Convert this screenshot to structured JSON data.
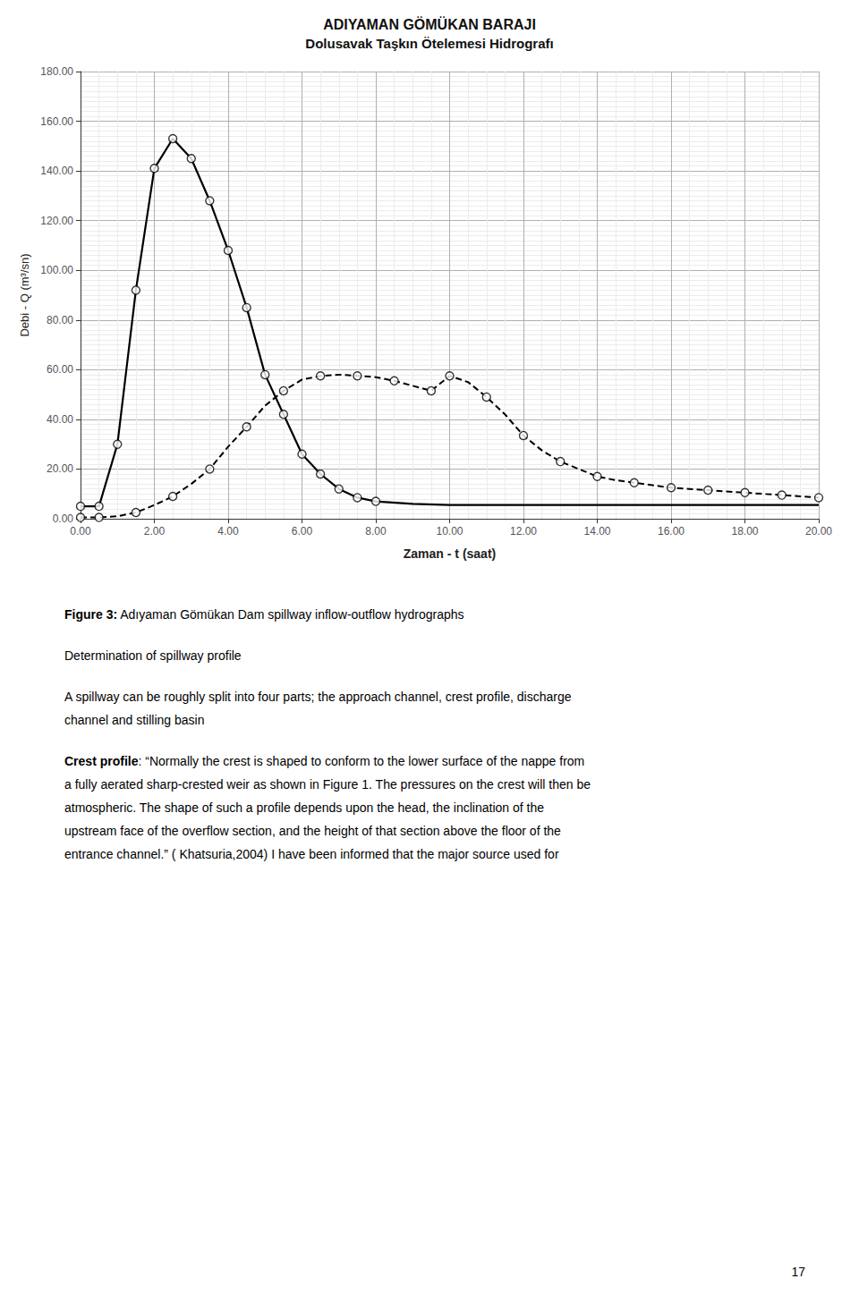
{
  "chart_data": {
    "type": "line",
    "title": "ADIYAMAN GÖMÜKAN BARAJI",
    "subtitle": "Dolusavak Taşkın Ötelemesi Hidrografı",
    "xlabel": "Zaman - t (saat)",
    "ylabel": "Debi - Q (m³/sn)",
    "xlim": [
      0,
      20
    ],
    "ylim": [
      0,
      180
    ],
    "xticks": [
      {
        "value": 0,
        "label": "0.00"
      },
      {
        "value": 2,
        "label": "2.00"
      },
      {
        "value": 4,
        "label": "4.00"
      },
      {
        "value": 6,
        "label": "6.00"
      },
      {
        "value": 8,
        "label": "8.00"
      },
      {
        "value": 10,
        "label": "10.00"
      },
      {
        "value": 12,
        "label": "12.00"
      },
      {
        "value": 14,
        "label": "14.00"
      },
      {
        "value": 16,
        "label": "16.00"
      },
      {
        "value": 18,
        "label": "18.00"
      },
      {
        "value": 20,
        "label": "20.00"
      }
    ],
    "yticks": [
      {
        "value": 0,
        "label": "0.00"
      },
      {
        "value": 20,
        "label": "20.00"
      },
      {
        "value": 40,
        "label": "40.00"
      },
      {
        "value": 60,
        "label": "60.00"
      },
      {
        "value": 80,
        "label": "80.00"
      },
      {
        "value": 100,
        "label": "100.00"
      },
      {
        "value": 120,
        "label": "120.00"
      },
      {
        "value": 140,
        "label": "140.00"
      },
      {
        "value": 160,
        "label": "160.00"
      },
      {
        "value": 180,
        "label": "180.00"
      }
    ],
    "grid": true,
    "series": [
      {
        "type": "line",
        "color": "#000000",
        "line_style": "solid",
        "x": [
          0.0,
          0.5,
          1.0,
          1.5,
          2.0,
          2.5,
          3.0,
          3.5,
          4.0,
          4.5,
          5.0,
          5.5,
          6.0,
          6.5,
          7.0,
          7.5,
          8.0,
          9.0,
          10.0,
          12.0,
          14.0,
          16.0,
          18.0,
          20.0
        ],
        "values": [
          5.0,
          5.0,
          30.0,
          92.0,
          141.0,
          153.0,
          145.0,
          128.0,
          108.0,
          85.0,
          58.0,
          42.0,
          26.0,
          18.0,
          12.0,
          8.5,
          7.0,
          6.0,
          5.5,
          5.5,
          5.5,
          5.5,
          5.5,
          5.5
        ]
      },
      {
        "type": "scatter",
        "color": "#000000",
        "marker": "circle",
        "x": [
          0.0,
          0.5,
          1.0,
          1.5,
          2.0,
          2.5,
          3.0,
          3.5,
          4.0,
          4.5,
          5.0,
          5.5,
          6.0,
          6.5,
          7.0,
          7.5,
          8.0
        ],
        "values": [
          5.0,
          5.0,
          30.0,
          92.0,
          141.0,
          153.0,
          145.0,
          128.0,
          108.0,
          85.0,
          58.0,
          42.0,
          26.0,
          18.0,
          12.0,
          8.5,
          7.0
        ]
      },
      {
        "type": "line",
        "color": "#000000",
        "line_style": "dashed",
        "x": [
          0.0,
          0.5,
          1.0,
          1.5,
          2.0,
          2.5,
          3.0,
          3.5,
          4.0,
          4.5,
          5.0,
          5.5,
          6.0,
          6.5,
          7.0,
          7.5,
          8.0,
          8.5,
          9.0,
          9.5,
          10.0,
          10.5,
          11.0,
          11.5,
          12.0,
          12.5,
          13.0,
          13.5,
          14.0,
          14.5,
          15.0,
          15.5,
          16.0,
          16.5,
          17.0,
          17.5,
          18.0,
          18.5,
          19.0,
          19.5,
          20.0
        ],
        "values": [
          0.5,
          0.5,
          1.0,
          2.5,
          5.5,
          9.0,
          14.0,
          20.0,
          29.0,
          37.0,
          45.5,
          51.5,
          56.0,
          57.5,
          58.0,
          57.5,
          57.0,
          55.5,
          53.5,
          51.5,
          57.5,
          55.0,
          49.0,
          42.0,
          33.5,
          27.5,
          23.0,
          20.0,
          17.0,
          15.5,
          14.5,
          13.5,
          12.5,
          12.0,
          11.5,
          11.0,
          10.5,
          10.0,
          9.5,
          9.0,
          8.5
        ]
      },
      {
        "type": "scatter",
        "color": "#000000",
        "marker": "circle",
        "x": [
          0.0,
          0.5,
          1.5,
          2.5,
          3.5,
          4.5,
          5.5,
          6.5,
          7.5,
          8.5,
          9.5,
          10.0,
          11.0,
          12.0,
          13.0,
          14.0,
          15.0,
          16.0,
          17.0,
          18.0,
          19.0,
          20.0
        ],
        "values": [
          0.5,
          0.5,
          2.5,
          9.0,
          20.0,
          37.0,
          51.5,
          57.5,
          57.5,
          55.5,
          51.5,
          57.5,
          49.0,
          33.5,
          23.0,
          17.0,
          14.5,
          12.5,
          11.5,
          10.5,
          9.5,
          8.5
        ]
      }
    ],
    "annotations": [
      [
        [
          "Figure 3:",
          " Adıyaman Gömükan Dam spillway inflow-outflow hydrographs"
        ]
      ],
      [
        [
          "Determination of spillway profile"
        ]
      ],
      [
        [
          "A spillway can be roughly split into four parts; the approach channel, crest profile, discharge"
        ],
        [
          "channel and stilling basin"
        ]
      ],
      [
        [
          "Crest profile",
          ": “Normally the crest is shaped to conform to the lower surface of the nappe from"
        ],
        [
          "a fully aerated sharp-crested weir as shown in Figure 1. The pressures on the crest will then be"
        ],
        [
          "atmospheric. The shape of such a profile depends upon the head, the inclination of the"
        ],
        [
          "upstream face of the overflow section, and the height of that section above the floor of the"
        ],
        [
          "entrance channel.” ( Khatsuria,2004) I have been informed that the major source used for"
        ]
      ]
    ],
    "page_number": "17"
  }
}
